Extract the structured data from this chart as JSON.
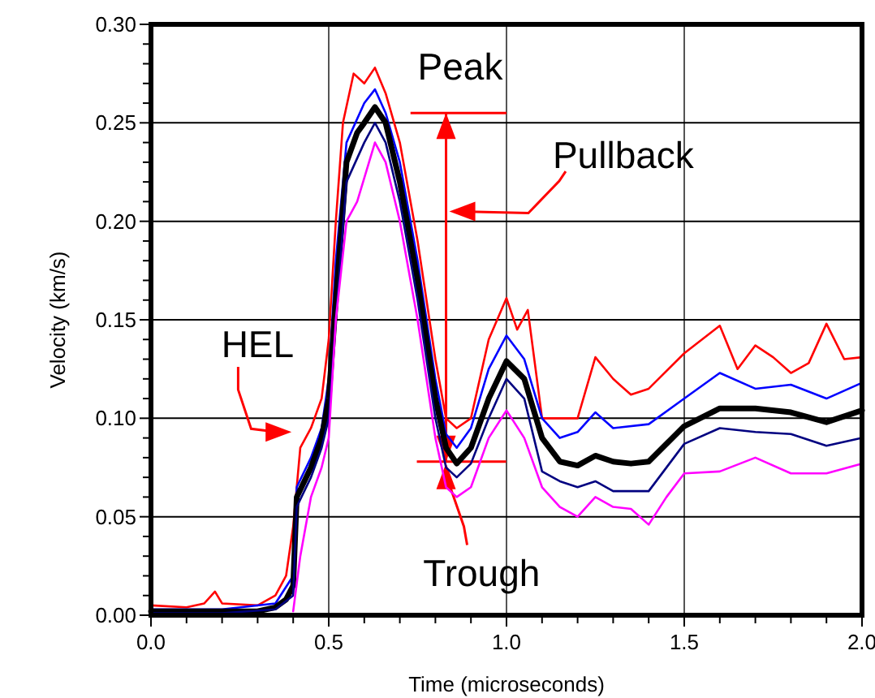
{
  "chart_data": {
    "type": "line",
    "xlabel": "Time (microseconds)",
    "ylabel": "Velocity (km/s)",
    "xlim": [
      0,
      2
    ],
    "ylim": [
      0,
      0.3
    ],
    "xticks": [
      {
        "value": 0,
        "label": "0.0"
      },
      {
        "value": 0.1,
        "label": null
      },
      {
        "value": 0.2,
        "label": null
      },
      {
        "value": 0.3,
        "label": null
      },
      {
        "value": 0.4,
        "label": null
      },
      {
        "value": 0.5,
        "label": "0.5"
      },
      {
        "value": 0.6,
        "label": null
      },
      {
        "value": 0.7,
        "label": null
      },
      {
        "value": 0.8,
        "label": null
      },
      {
        "value": 0.9,
        "label": null
      },
      {
        "value": 1,
        "label": "1.0"
      },
      {
        "value": 1.1,
        "label": null
      },
      {
        "value": 1.2,
        "label": null
      },
      {
        "value": 1.3,
        "label": null
      },
      {
        "value": 1.4,
        "label": null
      },
      {
        "value": 1.5,
        "label": "1.5"
      },
      {
        "value": 1.6,
        "label": null
      },
      {
        "value": 1.7,
        "label": null
      },
      {
        "value": 1.8,
        "label": null
      },
      {
        "value": 1.9,
        "label": null
      },
      {
        "value": 2,
        "label": "2.0"
      }
    ],
    "yticks": [
      {
        "value": 0,
        "label": "0.00"
      },
      {
        "value": 0.01,
        "label": null
      },
      {
        "value": 0.02,
        "label": null
      },
      {
        "value": 0.03,
        "label": null
      },
      {
        "value": 0.04,
        "label": null
      },
      {
        "value": 0.05,
        "label": "0.05"
      },
      {
        "value": 0.06,
        "label": null
      },
      {
        "value": 0.07,
        "label": null
      },
      {
        "value": 0.08,
        "label": null
      },
      {
        "value": 0.09,
        "label": null
      },
      {
        "value": 0.1,
        "label": "0.10"
      },
      {
        "value": 0.11,
        "label": null
      },
      {
        "value": 0.12,
        "label": null
      },
      {
        "value": 0.13,
        "label": null
      },
      {
        "value": 0.14,
        "label": null
      },
      {
        "value": 0.15,
        "label": "0.15"
      },
      {
        "value": 0.16,
        "label": null
      },
      {
        "value": 0.17,
        "label": null
      },
      {
        "value": 0.18,
        "label": null
      },
      {
        "value": 0.19,
        "label": null
      },
      {
        "value": 0.2,
        "label": "0.20"
      },
      {
        "value": 0.21,
        "label": null
      },
      {
        "value": 0.22,
        "label": null
      },
      {
        "value": 0.23,
        "label": null
      },
      {
        "value": 0.24,
        "label": null
      },
      {
        "value": 0.25,
        "label": "0.25"
      },
      {
        "value": 0.26,
        "label": null
      },
      {
        "value": 0.27,
        "label": null
      },
      {
        "value": 0.28,
        "label": null
      },
      {
        "value": 0.29,
        "label": null
      },
      {
        "value": 0.3,
        "label": "0.30"
      }
    ],
    "grid": true,
    "marker": "none",
    "line_style": "solid",
    "series": [
      {
        "color": "#ff0000",
        "x": [
          0,
          0.1,
          0.15,
          0.18,
          0.2,
          0.3,
          0.35,
          0.38,
          0.4,
          0.42,
          0.45,
          0.48,
          0.5,
          0.52,
          0.54,
          0.57,
          0.6,
          0.63,
          0.66,
          0.7,
          0.75,
          0.8,
          0.83,
          0.86,
          0.9,
          0.95,
          1,
          1.03,
          1.06,
          1.1,
          1.15,
          1.2,
          1.25,
          1.3,
          1.35,
          1.4,
          1.5,
          1.6,
          1.65,
          1.7,
          1.75,
          1.8,
          1.85,
          1.9,
          1.95,
          2
        ],
        "values": [
          0.005,
          0.004,
          0.006,
          0.012,
          0.006,
          0.005,
          0.01,
          0.02,
          0.045,
          0.085,
          0.095,
          0.11,
          0.14,
          0.2,
          0.25,
          0.275,
          0.27,
          0.278,
          0.265,
          0.24,
          0.19,
          0.13,
          0.1,
          0.095,
          0.1,
          0.14,
          0.161,
          0.145,
          0.155,
          0.1,
          0.1,
          0.1,
          0.131,
          0.12,
          0.112,
          0.115,
          0.133,
          0.147,
          0.125,
          0.137,
          0.131,
          0.123,
          0.128,
          0.148,
          0.13,
          0.131
        ]
      },
      {
        "color": "#0000ff",
        "x": [
          0,
          0.2,
          0.35,
          0.4,
          0.41,
          0.45,
          0.48,
          0.5,
          0.52,
          0.55,
          0.6,
          0.63,
          0.66,
          0.7,
          0.75,
          0.8,
          0.83,
          0.86,
          0.9,
          0.95,
          1,
          1.05,
          1.1,
          1.15,
          1.2,
          1.25,
          1.3,
          1.4,
          1.5,
          1.6,
          1.7,
          1.8,
          1.9,
          2
        ],
        "values": [
          0.003,
          0.003,
          0.006,
          0.02,
          0.065,
          0.08,
          0.095,
          0.12,
          0.18,
          0.24,
          0.26,
          0.267,
          0.255,
          0.23,
          0.18,
          0.12,
          0.092,
          0.085,
          0.095,
          0.125,
          0.142,
          0.13,
          0.1,
          0.09,
          0.093,
          0.103,
          0.095,
          0.097,
          0.11,
          0.123,
          0.115,
          0.117,
          0.11,
          0.118
        ]
      },
      {
        "color": "#000000",
        "x": [
          0,
          0.1,
          0.2,
          0.3,
          0.35,
          0.38,
          0.4,
          0.41,
          0.45,
          0.48,
          0.5,
          0.52,
          0.55,
          0.58,
          0.6,
          0.63,
          0.66,
          0.7,
          0.75,
          0.8,
          0.83,
          0.86,
          0.9,
          0.95,
          1,
          1.05,
          1.1,
          1.15,
          1.2,
          1.25,
          1.3,
          1.35,
          1.4,
          1.5,
          1.6,
          1.7,
          1.8,
          1.9,
          2
        ],
        "values": [
          0.002,
          0.002,
          0.002,
          0.002,
          0.004,
          0.008,
          0.015,
          0.06,
          0.075,
          0.09,
          0.11,
          0.16,
          0.23,
          0.245,
          0.25,
          0.258,
          0.25,
          0.22,
          0.17,
          0.11,
          0.085,
          0.077,
          0.085,
          0.11,
          0.129,
          0.12,
          0.09,
          0.078,
          0.076,
          0.081,
          0.078,
          0.077,
          0.078,
          0.096,
          0.105,
          0.105,
          0.103,
          0.098,
          0.104
        ]
      },
      {
        "color": "#000080",
        "x": [
          0,
          0.2,
          0.35,
          0.4,
          0.41,
          0.45,
          0.48,
          0.5,
          0.52,
          0.55,
          0.6,
          0.63,
          0.66,
          0.7,
          0.75,
          0.8,
          0.83,
          0.86,
          0.9,
          0.95,
          1,
          1.05,
          1.1,
          1.15,
          1.2,
          1.25,
          1.3,
          1.4,
          1.5,
          1.6,
          1.7,
          1.8,
          1.9,
          2
        ],
        "values": [
          0.001,
          0.001,
          0.003,
          0.01,
          0.055,
          0.07,
          0.085,
          0.1,
          0.15,
          0.22,
          0.24,
          0.25,
          0.24,
          0.21,
          0.16,
          0.1,
          0.075,
          0.07,
          0.077,
          0.1,
          0.12,
          0.11,
          0.073,
          0.068,
          0.065,
          0.068,
          0.063,
          0.063,
          0.087,
          0.095,
          0.093,
          0.092,
          0.086,
          0.09
        ]
      },
      {
        "color": "#ff00ff",
        "x": [
          0.4,
          0.42,
          0.45,
          0.48,
          0.5,
          0.52,
          0.55,
          0.58,
          0.63,
          0.66,
          0.7,
          0.75,
          0.8,
          0.83,
          0.86,
          0.9,
          0.95,
          1,
          1.05,
          1.1,
          1.15,
          1.2,
          1.25,
          1.3,
          1.35,
          1.4,
          1.45,
          1.5,
          1.6,
          1.7,
          1.8,
          1.9,
          2
        ],
        "values": [
          0.002,
          0.03,
          0.06,
          0.075,
          0.09,
          0.15,
          0.2,
          0.21,
          0.24,
          0.23,
          0.2,
          0.15,
          0.09,
          0.065,
          0.06,
          0.065,
          0.09,
          0.104,
          0.09,
          0.065,
          0.055,
          0.05,
          0.06,
          0.055,
          0.054,
          0.046,
          0.06,
          0.072,
          0.073,
          0.08,
          0.072,
          0.072,
          0.077
        ]
      }
    ],
    "annotations": [
      "Peak",
      "Pullback",
      "HEL",
      {
        "text": "Trough",
        "x": 0.83,
        "y": 0.078
      }
    ]
  }
}
